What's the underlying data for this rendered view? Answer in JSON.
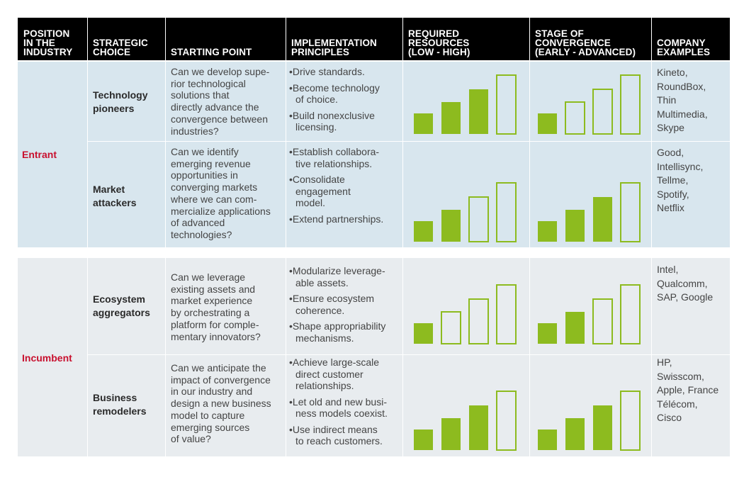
{
  "header": {
    "position": "POSITION\nIN THE\nINDUSTRY",
    "choice": "STRATEGIC\nCHOICE",
    "starting_point": "STARTING POINT",
    "principles": "IMPLEMENTATION\nPRINCIPLES",
    "resources": "REQUIRED\nRESOURCES\n(LOW - HIGH)",
    "convergence": "STAGE OF\nCONVERGENCE\n(EARLY - ADVANCED)",
    "companies": "COMPANY\nEXAMPLES"
  },
  "colors": {
    "bar": "#8dbb1f",
    "entrant_bg": "#d8e6ee",
    "incumbent_bg": "#e8ecef",
    "position_text": "#c8102e"
  },
  "groups": [
    {
      "position": "Entrant",
      "rows": [
        {
          "choice": "Technology\npioneers",
          "starting_point": "Can we develop supe-\nrior technological\nsolutions that\ndirectly advance the\nconvergence between\nindustries?",
          "principles": [
            "•Drive standards.",
            "•Become technology\nof choice.",
            "•Build nonexclusive\nlicensing."
          ],
          "resources_filled": [
            true,
            true,
            true,
            false
          ],
          "convergence_filled": [
            true,
            false,
            false,
            false
          ],
          "companies": "Kineto,\nRoundBox,\nThin\nMultimedia,\nSkype"
        },
        {
          "choice": "Market\nattackers",
          "starting_point": "Can we identify\nemerging revenue\nopportunities in\nconverging markets\nwhere we can com-\nmercialize applications\nof advanced\ntechnologies?",
          "principles": [
            "•Establish collabora-\ntive relationships.",
            "•Consolidate\nengagement\nmodel.",
            "•Extend partnerships."
          ],
          "resources_filled": [
            true,
            true,
            false,
            false
          ],
          "convergence_filled": [
            true,
            true,
            true,
            false
          ],
          "companies": "Good,\nIntellisync,\nTellme,\nSpotify,\nNetflix"
        }
      ]
    },
    {
      "position": "Incumbent",
      "rows": [
        {
          "choice": "Ecosystem\naggregators",
          "starting_point": "Can we leverage\nexisting assets and\nmarket experience\nby orchestrating a\nplatform for comple-\nmentary innovators?",
          "principles": [
            "•Modularize leverage-\nable assets.",
            "•Ensure ecosystem\ncoherence.",
            "•Shape appropriability\nmechanisms."
          ],
          "resources_filled": [
            true,
            false,
            false,
            false
          ],
          "convergence_filled": [
            true,
            true,
            false,
            false
          ],
          "companies": "Intel,\nQualcomm,\nSAP, Google"
        },
        {
          "choice": "Business\nremodelers",
          "starting_point": "Can we anticipate the\nimpact of convergence\nin our industry and\ndesign a new business\nmodel to capture\nemerging sources\nof value?",
          "principles": [
            "•Achieve large-scale\ndirect customer\nrelationships.",
            "•Let old and new busi-\nness models coexist.",
            "•Use indirect means\nto reach customers."
          ],
          "resources_filled": [
            true,
            true,
            true,
            false
          ],
          "convergence_filled": [
            true,
            true,
            true,
            false
          ],
          "companies": "HP,\nSwisscom,\nApple, France\nTélécom,\nCisco"
        }
      ]
    }
  ]
}
